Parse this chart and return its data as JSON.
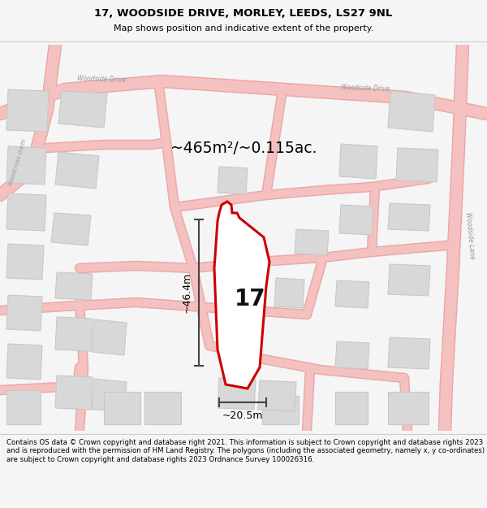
{
  "title_line1": "17, WOODSIDE DRIVE, MORLEY, LEEDS, LS27 9NL",
  "title_line2": "Map shows position and indicative extent of the property.",
  "area_label": "~465m²/~0.115ac.",
  "width_label": "~20.5m",
  "height_label": "~46.4m",
  "property_number": "17",
  "footer_text": "Contains OS data © Crown copyright and database right 2021. This information is subject to Crown copyright and database rights 2023 and is reproduced with the permission of HM Land Registry. The polygons (including the associated geometry, namely x, y co-ordinates) are subject to Crown copyright and database rights 2023 Ordnance Survey 100026316.",
  "bg_color": "#f5f5f5",
  "map_bg_color": "#eeecec",
  "property_fill": "#ffffff",
  "property_edge": "#cc0000",
  "road_color": "#f5c0c0",
  "road_outline": "#e8a8a8",
  "building_fill": "#d8d8d8",
  "building_edge": "#c8c8c8",
  "dim_line_color": "#444444",
  "sep_color": "#cccccc",
  "road_label_color": "#999999",
  "property_label_color": "#111111"
}
